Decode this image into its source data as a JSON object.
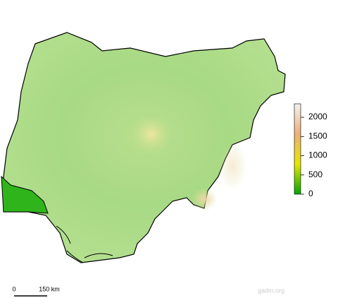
{
  "legend": {
    "lim": [
      0,
      2350
    ],
    "ticks": [
      0,
      500,
      1000,
      1500,
      2000
    ],
    "colors": [
      "#00a600",
      "#e6e600",
      "#ecb176",
      "#f2f2f2"
    ]
  },
  "scale_bar": {
    "start": "0",
    "end": "150 km"
  },
  "credit": "gadm.org"
}
